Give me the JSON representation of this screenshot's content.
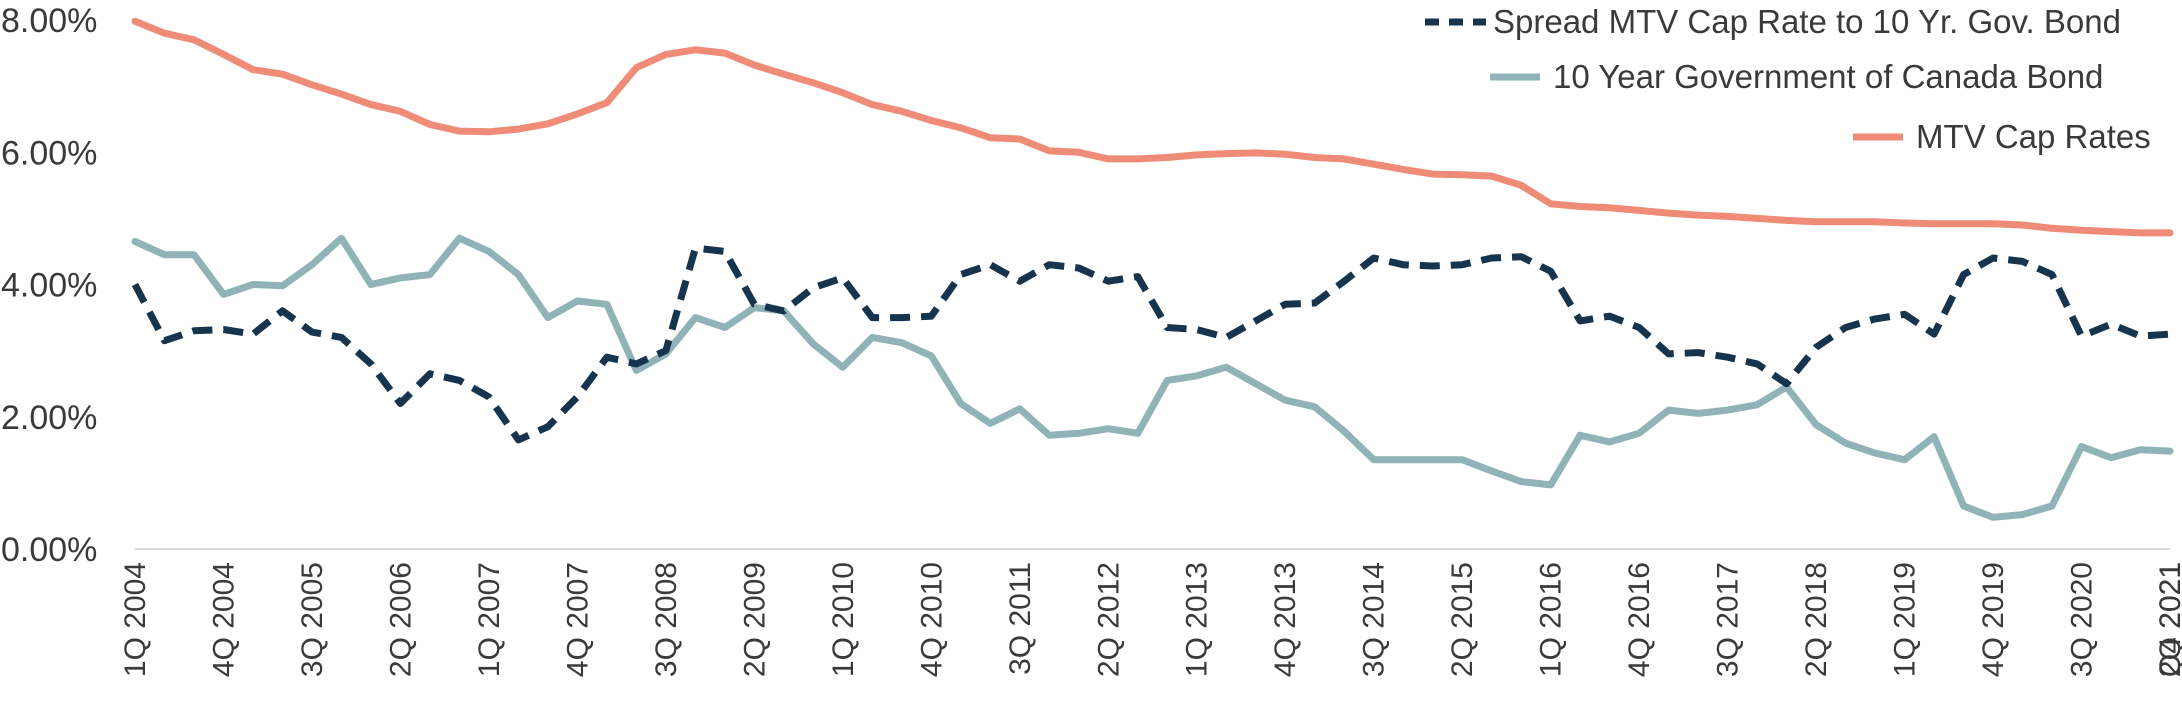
{
  "chart_data": {
    "type": "line",
    "title": "",
    "xlabel": "",
    "ylabel": "",
    "ylim": [
      0,
      8
    ],
    "y_ticks": [
      0,
      2,
      4,
      6,
      8
    ],
    "y_tick_labels": [
      "0.00%",
      "2.00%",
      "4.00%",
      "6.00%",
      "8.00%"
    ],
    "x_tick_labels": [
      "1Q 2004",
      "4Q 2004",
      "3Q 2005",
      "2Q 2006",
      "1Q 2007",
      "4Q 2007",
      "3Q 2008",
      "2Q 2009",
      "1Q 2010",
      "4Q 2010",
      "3Q 2011",
      "2Q 2012",
      "1Q 2013",
      "4Q 2013",
      "3Q 2014",
      "2Q 2015",
      "1Q 2016",
      "4Q 2016",
      "3Q 2017",
      "2Q 2018",
      "1Q 2019",
      "4Q 2019",
      "3Q 2020",
      "2Q 2021",
      "Q4 2021"
    ],
    "grid": false,
    "legend_position": "top-right",
    "series": [
      {
        "name": "Spread MTV Cap Rate to 10 Yr. Gov. Bond",
        "color": "#17344f",
        "style": "dashed",
        "values": [
          4.0,
          3.15,
          3.3,
          3.32,
          3.25,
          3.6,
          3.28,
          3.2,
          2.8,
          2.2,
          2.65,
          2.55,
          2.3,
          1.65,
          1.85,
          2.3,
          2.9,
          2.8,
          3.0,
          4.55,
          4.5,
          3.7,
          3.6,
          3.95,
          4.1,
          3.5,
          3.5,
          3.52,
          4.15,
          4.3,
          4.05,
          4.3,
          4.25,
          4.05,
          4.12,
          3.35,
          3.32,
          3.2,
          3.45,
          3.7,
          3.72,
          4.05,
          4.4,
          4.3,
          4.28,
          4.3,
          4.4,
          4.42,
          4.2,
          3.45,
          3.52,
          3.35,
          2.95,
          2.97,
          2.9,
          2.8,
          2.5,
          3.05,
          3.35,
          3.48,
          3.55,
          3.25,
          4.15,
          4.4,
          4.35,
          4.15,
          3.22,
          3.4,
          3.22,
          3.25
        ]
      },
      {
        "name": "10 Year Government of Canada Bond",
        "color": "#8fb3b7",
        "style": "solid",
        "values": [
          4.65,
          4.45,
          4.45,
          3.85,
          4.0,
          3.98,
          4.3,
          4.7,
          4.0,
          4.1,
          4.15,
          4.7,
          4.5,
          4.15,
          3.5,
          3.75,
          3.7,
          2.7,
          2.95,
          3.5,
          3.35,
          3.65,
          3.6,
          3.1,
          2.75,
          3.2,
          3.12,
          2.92,
          2.2,
          1.9,
          2.12,
          1.72,
          1.75,
          1.82,
          1.75,
          2.55,
          2.62,
          2.75,
          2.5,
          2.25,
          2.15,
          1.78,
          1.35,
          1.35,
          1.35,
          1.35,
          1.18,
          1.02,
          0.97,
          1.72,
          1.62,
          1.75,
          2.1,
          2.05,
          2.1,
          2.18,
          2.45,
          1.88,
          1.6,
          1.45,
          1.35,
          1.7,
          0.65,
          0.48,
          0.52,
          0.65,
          1.55,
          1.38,
          1.5,
          1.48
        ]
      },
      {
        "name": "MTV Cap Rates",
        "color": "#ef8c78",
        "style": "solid",
        "values": [
          7.98,
          7.8,
          7.7,
          7.48,
          7.25,
          7.18,
          7.02,
          6.88,
          6.72,
          6.62,
          6.42,
          6.32,
          6.31,
          6.35,
          6.43,
          6.58,
          6.75,
          7.28,
          7.48,
          7.55,
          7.5,
          7.32,
          7.18,
          7.05,
          6.9,
          6.72,
          6.62,
          6.48,
          6.37,
          6.22,
          6.2,
          6.02,
          6.0,
          5.9,
          5.9,
          5.92,
          5.96,
          5.98,
          5.99,
          5.97,
          5.92,
          5.9,
          5.82,
          5.74,
          5.67,
          5.66,
          5.64,
          5.5,
          5.22,
          5.18,
          5.16,
          5.12,
          5.08,
          5.05,
          5.03,
          5.0,
          4.97,
          4.95,
          4.95,
          4.95,
          4.93,
          4.92,
          4.92,
          4.92,
          4.9,
          4.85,
          4.82,
          4.8,
          4.78,
          4.78
        ]
      }
    ]
  }
}
